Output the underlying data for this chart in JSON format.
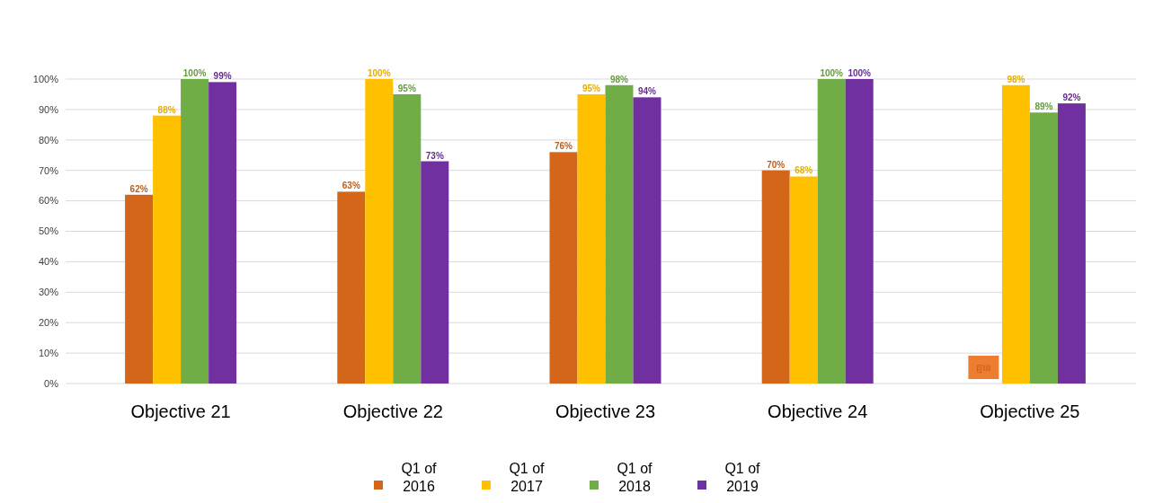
{
  "chart_data": {
    "type": "bar",
    "categories": [
      "Objective 21",
      "Objective 22",
      "Objective 23",
      "Objective 24",
      "Objective 25"
    ],
    "series": [
      {
        "name": "Q1 of 2016",
        "color": "#d4661a",
        "values": [
          62,
          63,
          76,
          70,
          null
        ],
        "value_labels": [
          "62%",
          "63%",
          "76%",
          "70%",
          null
        ]
      },
      {
        "name": "Q1 of 2017",
        "color": "#ffc000",
        "values": [
          88,
          100,
          95,
          68,
          98
        ],
        "value_labels": [
          "88%",
          "100%",
          "95%",
          "68%",
          "98%"
        ]
      },
      {
        "name": "Q1 of 2018",
        "color": "#70ad47",
        "values": [
          100,
          95,
          98,
          100,
          89
        ],
        "value_labels": [
          "100%",
          "95%",
          "98%",
          "100%",
          "89%"
        ]
      },
      {
        "name": "Q1 of 2019",
        "color": "#7030a0",
        "values": [
          99,
          73,
          94,
          100,
          92
        ],
        "value_labels": [
          "99%",
          "73%",
          "94%",
          "100%",
          "92%"
        ]
      }
    ],
    "ylim": [
      0,
      100
    ],
    "yticks": [
      {
        "value": 0,
        "label": "0%"
      },
      {
        "value": 10,
        "label": "10%"
      },
      {
        "value": 20,
        "label": "20%"
      },
      {
        "value": 30,
        "label": "30%"
      },
      {
        "value": 40,
        "label": "40%"
      },
      {
        "value": 50,
        "label": "50%"
      },
      {
        "value": 60,
        "label": "60%"
      },
      {
        "value": 70,
        "label": "70%"
      },
      {
        "value": 80,
        "label": "80%"
      },
      {
        "value": 90,
        "label": "90%"
      },
      {
        "value": 100,
        "label": "100%"
      }
    ],
    "grid": "y",
    "legend": "bottom",
    "annotations": [
      "គ្មាន"
    ]
  }
}
